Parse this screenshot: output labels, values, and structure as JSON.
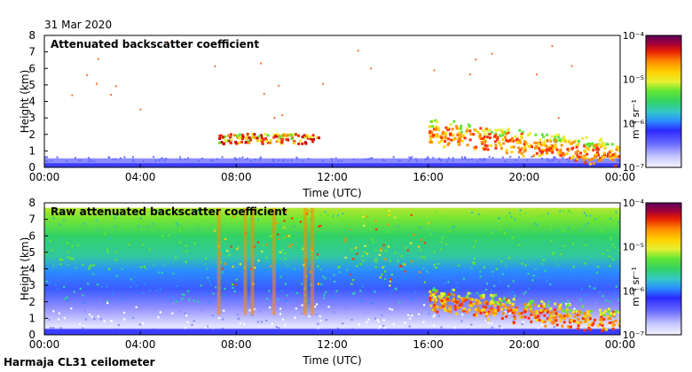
{
  "date_label": "31 Mar 2020",
  "footer_label": "Harmaja CL31 ceilometer",
  "colors": {
    "scale": [
      "#f4f4ff",
      "#c8c8ff",
      "#7a7aff",
      "#2a2aff",
      "#2a8cff",
      "#32c8c8",
      "#32d264",
      "#64e632",
      "#e6f032",
      "#ffd200",
      "#ff8c00",
      "#ff3200",
      "#c80000",
      "#780078",
      "#5a005a"
    ]
  },
  "chart_data": [
    {
      "type": "heatmap",
      "title": "Attenuated backscatter coefficient",
      "xlabel": "Time (UTC)",
      "ylabel": "Height (km)",
      "xlim": [
        0,
        24
      ],
      "ylim": [
        0,
        8
      ],
      "x_ticks": [
        "00:00",
        "04:00",
        "08:00",
        "12:00",
        "16:00",
        "20:00",
        "00:00"
      ],
      "y_ticks": [
        "0",
        "1",
        "2",
        "3",
        "4",
        "5",
        "6",
        "7",
        "8"
      ],
      "colorbar": {
        "label": "m⁻¹ sr⁻¹",
        "ticks": [
          "10⁻⁷",
          "10⁻⁶",
          "10⁻⁵",
          "10⁻⁴"
        ]
      },
      "features": [
        {
          "name": "surface-layer",
          "time_start": 0,
          "time_end": 24,
          "height_min": 0,
          "height_max": 0.6,
          "level": "low"
        },
        {
          "name": "cloud-patches",
          "time_start": 7,
          "time_end": 11.5,
          "height_min": 1.5,
          "height_max": 2.1,
          "level": "high"
        },
        {
          "name": "cloud-layer",
          "time_start": 16,
          "time_end": 24,
          "height_min": 0.2,
          "height_max": 3.0,
          "level": "high"
        }
      ]
    },
    {
      "type": "heatmap",
      "title": "Raw attenuated backscatter coefficient",
      "xlabel": "Time (UTC)",
      "ylabel": "Height (km)",
      "xlim": [
        0,
        24
      ],
      "ylim": [
        0,
        8
      ],
      "x_ticks": [
        "00:00",
        "04:00",
        "08:00",
        "12:00",
        "16:00",
        "20:00",
        "00:00"
      ],
      "y_ticks": [
        "0",
        "1",
        "2",
        "3",
        "4",
        "5",
        "6",
        "7",
        "8"
      ],
      "colorbar": {
        "label": "m⁻¹ sr⁻¹",
        "ticks": [
          "10⁻⁷",
          "10⁻⁶",
          "10⁻⁵",
          "10⁻⁴"
        ]
      },
      "features": [
        {
          "name": "noise-field",
          "time_start": 0,
          "time_end": 24,
          "height_min": 0,
          "height_max": 7.7,
          "level": "mid"
        },
        {
          "name": "cloud-layer",
          "time_start": 16,
          "time_end": 24,
          "height_min": 0.2,
          "height_max": 3.0,
          "level": "high"
        }
      ]
    }
  ]
}
